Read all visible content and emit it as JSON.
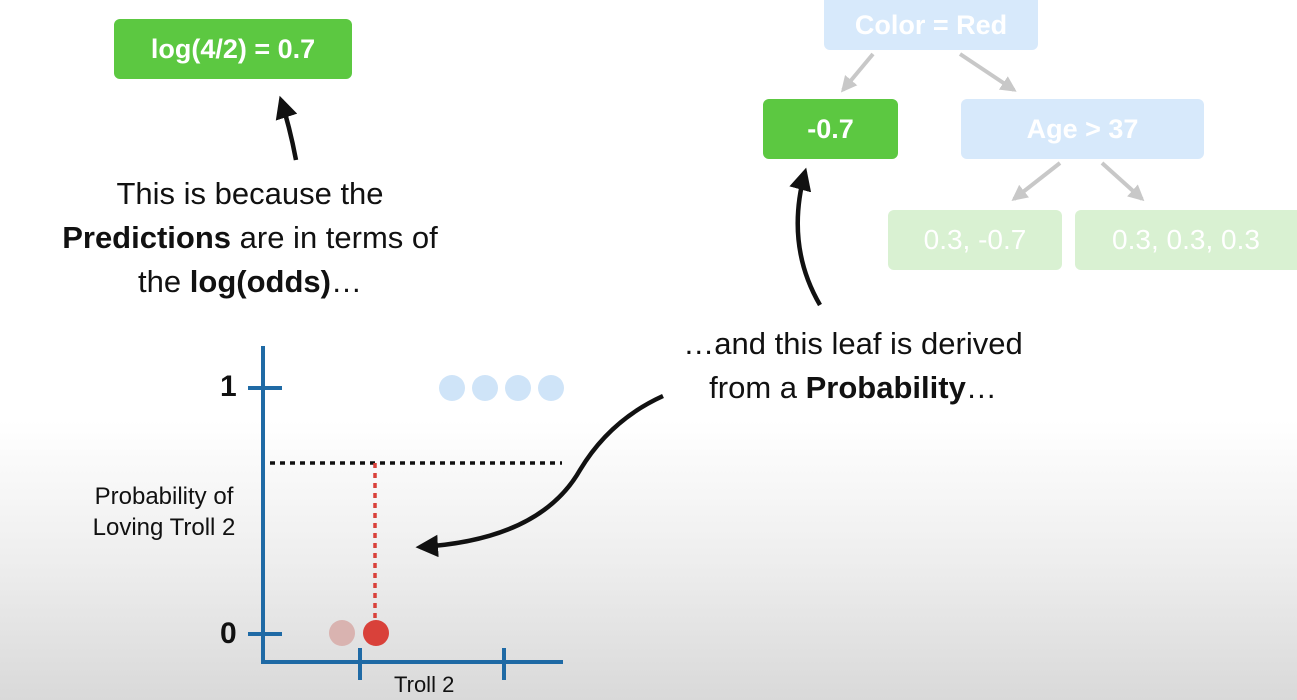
{
  "top_formula": {
    "text": "log(4/2) = 0.7"
  },
  "left_explanation": {
    "line1": "This is because the",
    "line2_bold": "Predictions",
    "line2_rest": " are in terms of",
    "line3_pre": "the ",
    "line3_bold": "log(odds)",
    "line3_post": "…"
  },
  "right_explanation": {
    "line1": "…and this leaf is derived",
    "line2_pre": "from a ",
    "line2_bold": "Probability",
    "line2_post": "…"
  },
  "tree": {
    "root": "Color = Red",
    "left_leaf": "-0.7",
    "right_node": "Age > 37",
    "leaf_a": "0.3, -0.7",
    "leaf_b": "0.3, 0.3, 0.3"
  },
  "graph": {
    "y_tick_top": "1",
    "y_tick_bottom": "0",
    "y_label_line1": "Probability of",
    "y_label_line2": "Loving Troll 2",
    "x_label": "Troll 2"
  },
  "colors": {
    "green": "#5cc841",
    "axis_blue": "#1f6aa5",
    "red_dot": "#d9413a",
    "pale_dot": "#cfe4f8"
  }
}
